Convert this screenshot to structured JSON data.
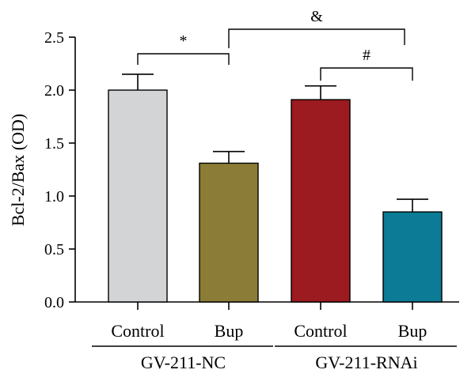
{
  "chart_data": {
    "type": "bar",
    "ylabel": "Bcl-2/Bax (OD)",
    "ylim": [
      0,
      2.5
    ],
    "yticks": [
      "0.0",
      "0.5",
      "1.0",
      "1.5",
      "2.0",
      "2.5"
    ],
    "categories": [
      "Control",
      "Bup",
      "Control",
      "Bup"
    ],
    "values": [
      2.0,
      1.31,
      1.91,
      0.85
    ],
    "errors": [
      0.15,
      0.11,
      0.13,
      0.12
    ],
    "bar_colors": [
      "#d3d4d6",
      "#8b7c37",
      "#9b1b20",
      "#0b7b96"
    ],
    "groups": [
      {
        "label": "GV-211-NC",
        "categories": [
          0,
          1
        ]
      },
      {
        "label": "GV-211-RNAi",
        "categories": [
          2,
          3
        ]
      }
    ],
    "significance": [
      {
        "symbol": "*",
        "from": 0,
        "to": 1
      },
      {
        "symbol": "&",
        "from": 1,
        "to": 3
      },
      {
        "symbol": "#",
        "from": 2,
        "to": 3
      }
    ],
    "grid": false,
    "legend": "none"
  }
}
